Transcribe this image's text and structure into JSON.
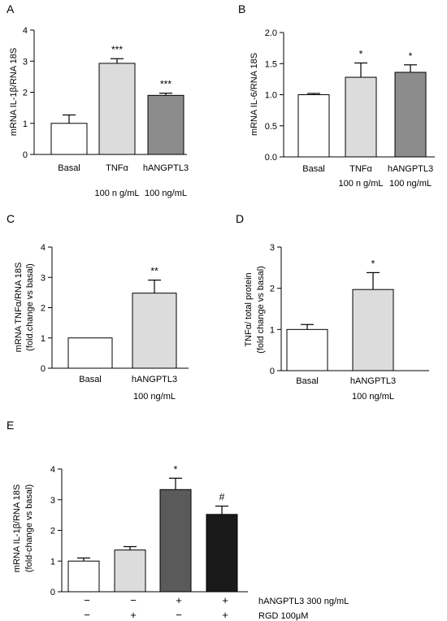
{
  "figure": {
    "panels": [
      "A",
      "B",
      "C",
      "D",
      "E"
    ]
  },
  "chart_data": [
    {
      "panel": "A",
      "type": "bar",
      "ylabel": "mRNA IL-1β/RNA 18S",
      "ylim": [
        0,
        4
      ],
      "yticks": [
        "0",
        "1",
        "2",
        "3",
        "4"
      ],
      "categories": [
        "Basal",
        "TNFα",
        "hANGPTL3"
      ],
      "sublabels": [
        "",
        "100 n g/mL",
        "100 ng/mL"
      ],
      "values": [
        1.0,
        2.93,
        1.9
      ],
      "errors": [
        0.27,
        0.15,
        0.07
      ],
      "significance": [
        "",
        "***",
        "***"
      ],
      "colors": [
        "#ffffff",
        "#dcdcdc",
        "#8c8c8c"
      ]
    },
    {
      "panel": "B",
      "type": "bar",
      "ylabel": "mRNA IL-6/RNA 18S",
      "ylim": [
        0,
        2
      ],
      "yticks": [
        "0.0",
        "0.5",
        "1.0",
        "1.5",
        "2.0"
      ],
      "categories": [
        "Basal",
        "TNFα",
        "hANGPTL3"
      ],
      "sublabels": [
        "",
        "100 n g/mL",
        "100 ng/mL"
      ],
      "values": [
        1.0,
        1.28,
        1.36
      ],
      "errors": [
        0.02,
        0.23,
        0.12
      ],
      "significance": [
        "",
        "*",
        "*"
      ],
      "colors": [
        "#ffffff",
        "#dcdcdc",
        "#8c8c8c"
      ]
    },
    {
      "panel": "C",
      "type": "bar",
      "ylabel": "mRNA TNFα/RNA 18S",
      "ylabel2": "(fold.change vs basal)",
      "ylim": [
        0,
        4
      ],
      "yticks": [
        "0",
        "1",
        "2",
        "3",
        "4"
      ],
      "categories": [
        "Basal",
        "hANGPTL3"
      ],
      "sublabels": [
        "",
        "100 ng/mL"
      ],
      "values": [
        1.0,
        2.48
      ],
      "errors": [
        0.0,
        0.43
      ],
      "significance": [
        "",
        "**"
      ],
      "colors": [
        "#ffffff",
        "#dcdcdc"
      ]
    },
    {
      "panel": "D",
      "type": "bar",
      "ylabel": "TNFα/ total protein",
      "ylabel2": "(fold change vs basal)",
      "ylim": [
        0,
        3
      ],
      "yticks": [
        "0",
        "1",
        "2",
        "3"
      ],
      "categories": [
        "Basal",
        "hANGPTL3"
      ],
      "sublabels": [
        "",
        "100 ng/mL"
      ],
      "values": [
        1.0,
        1.97
      ],
      "errors": [
        0.12,
        0.41
      ],
      "significance": [
        "",
        "*"
      ],
      "colors": [
        "#ffffff",
        "#dcdcdc"
      ]
    },
    {
      "panel": "E",
      "type": "bar",
      "ylabel": "mRNA IL-1β/RNA 18S",
      "ylabel2": "(fold-change vs basal)",
      "ylim": [
        0,
        4
      ],
      "yticks": [
        "0",
        "1",
        "2",
        "3",
        "4"
      ],
      "values": [
        1.0,
        1.36,
        3.33,
        2.52
      ],
      "errors": [
        0.1,
        0.11,
        0.37,
        0.27
      ],
      "significance": [
        "",
        "",
        "*",
        "#"
      ],
      "colors": [
        "#ffffff",
        "#dcdcdc",
        "#5a5a5a",
        "#1a1a1a"
      ],
      "conditions": [
        {
          "label": "hANGPTL3 300 ng/mL",
          "marks": [
            "−",
            "−",
            "+",
            "+"
          ]
        },
        {
          "label": "RGD 100μM",
          "marks": [
            "−",
            "+",
            "−",
            "+"
          ]
        }
      ]
    }
  ]
}
